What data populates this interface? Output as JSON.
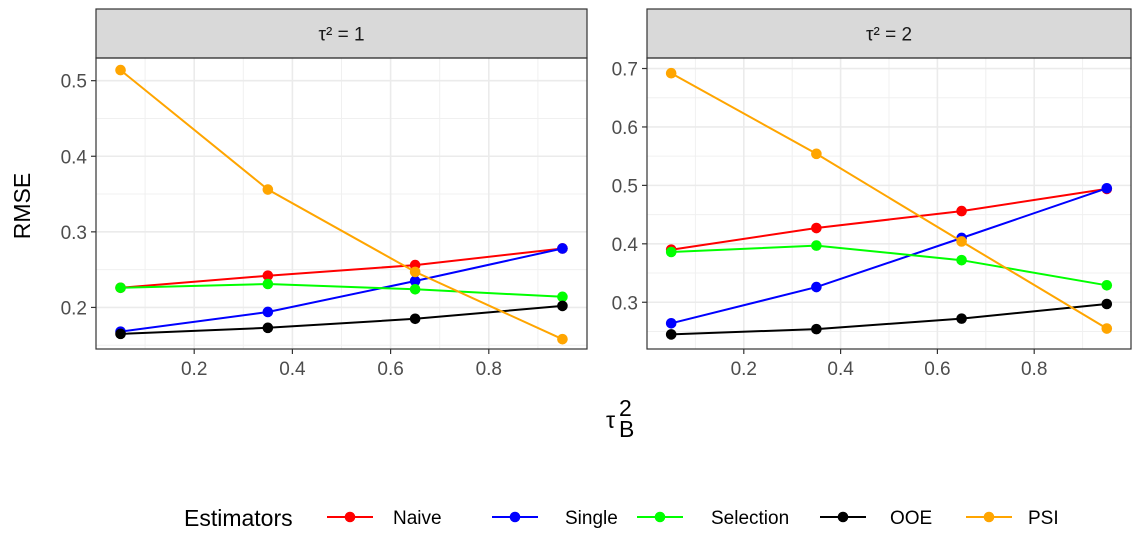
{
  "chart_data": {
    "type": "line",
    "xlabel": "τ²_B",
    "ylabel": "RMSE",
    "legend_title": "Estimators",
    "legend_position": "bottom",
    "grid": true,
    "panels": [
      {
        "strip": "τ² = 1",
        "xlim": [
          0.0,
          1.0
        ],
        "ylim": [
          0.145,
          0.53
        ],
        "x_ticks": [
          0.2,
          0.4,
          0.6,
          0.8
        ],
        "y_ticks": [
          0.2,
          0.3,
          0.4,
          0.5
        ],
        "x": [
          0.05,
          0.35,
          0.65,
          0.95
        ],
        "series": [
          {
            "name": "Naive",
            "values": [
              0.226,
              0.242,
              0.256,
              0.278
            ]
          },
          {
            "name": "Single",
            "values": [
              0.168,
              0.194,
              0.235,
              0.278
            ]
          },
          {
            "name": "Selection",
            "values": [
              0.226,
              0.231,
              0.224,
              0.214
            ]
          },
          {
            "name": "OOE",
            "values": [
              0.165,
              0.173,
              0.185,
              0.202
            ]
          },
          {
            "name": "PSI",
            "values": [
              0.514,
              0.356,
              0.247,
              0.158
            ]
          }
        ]
      },
      {
        "strip": "τ² = 2",
        "xlim": [
          0.0,
          1.0
        ],
        "ylim": [
          0.22,
          0.718
        ],
        "x_ticks": [
          0.2,
          0.4,
          0.6,
          0.8
        ],
        "y_ticks": [
          0.3,
          0.4,
          0.5,
          0.6,
          0.7
        ],
        "x": [
          0.05,
          0.35,
          0.65,
          0.95
        ],
        "series": [
          {
            "name": "Naive",
            "values": [
              0.39,
              0.427,
              0.456,
              0.494
            ]
          },
          {
            "name": "Single",
            "values": [
              0.264,
              0.326,
              0.41,
              0.495
            ]
          },
          {
            "name": "Selection",
            "values": [
              0.386,
              0.397,
              0.372,
              0.329
            ]
          },
          {
            "name": "OOE",
            "values": [
              0.245,
              0.254,
              0.272,
              0.297
            ]
          },
          {
            "name": "PSI",
            "values": [
              0.692,
              0.554,
              0.404,
              0.255
            ]
          }
        ]
      }
    ],
    "colors": {
      "Naive": "#ff0000",
      "Single": "#0000ff",
      "Selection": "#00ff00",
      "OOE": "#000000",
      "PSI": "#ffa500"
    }
  }
}
